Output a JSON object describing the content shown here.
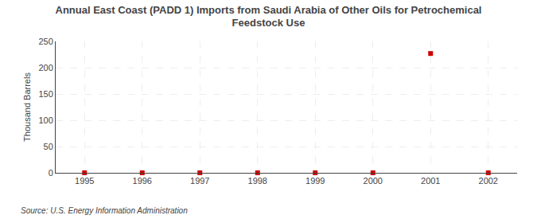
{
  "chart_data": {
    "type": "scatter",
    "title": "Annual East Coast (PADD 1) Imports from Saudi Arabia of Other Oils for Petrochemical\nFeedstock Use",
    "ylabel": "Thousand Barrels",
    "annotations": [
      "Source: U.S. Energy Information Administration"
    ],
    "x": [
      1995,
      1996,
      1997,
      1998,
      1999,
      2000,
      2001,
      2002
    ],
    "values": [
      0,
      0,
      0,
      0,
      0,
      0,
      227,
      0
    ],
    "color": "#cc0000",
    "marker": "square",
    "xlim": [
      1994.5,
      2002.5
    ],
    "xticks": [
      1995,
      1996,
      1997,
      1998,
      1999,
      2000,
      2001,
      2002
    ],
    "ylim": [
      0,
      250
    ],
    "yticks": [
      0,
      50,
      100,
      150,
      200,
      250
    ],
    "grid": true
  }
}
